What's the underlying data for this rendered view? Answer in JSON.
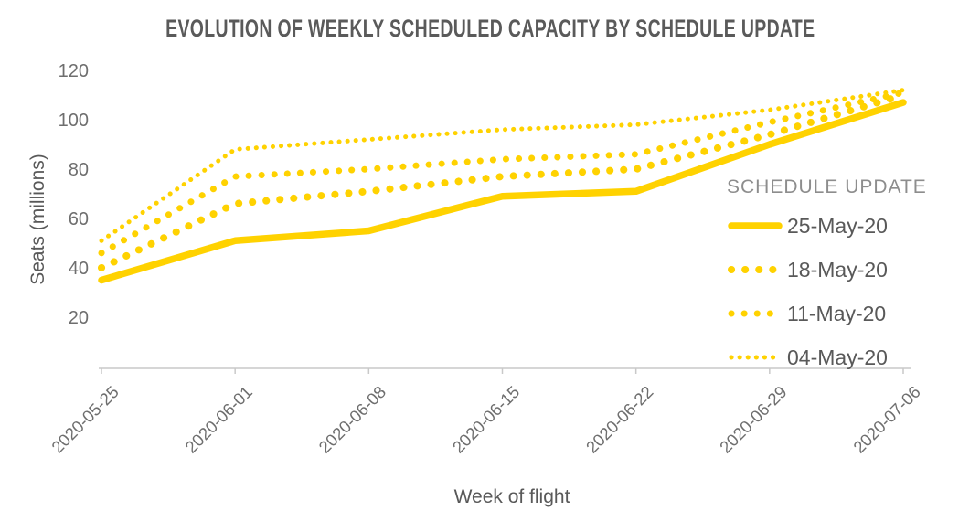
{
  "title": "EVOLUTION OF WEEKLY SCHEDULED CAPACITY BY SCHEDULE UPDATE",
  "colors": {
    "accent": "#FFD200",
    "title_text": "#5a5a5a",
    "axis_text": "#6e6e6e",
    "label_text": "#595959",
    "legend_title_text": "#8d8d8d",
    "axis_line": "#c9c9c9"
  },
  "chart_data": {
    "type": "line",
    "x": [
      "2020-05-25",
      "2020-06-01",
      "2020-06-08",
      "2020-06-15",
      "2020-06-22",
      "2020-06-29",
      "2020-07-06"
    ],
    "xlabel": "Week of flight",
    "ylabel": "Seats (millions)",
    "ylim": [
      0,
      120
    ],
    "yticks": [
      20,
      40,
      60,
      80,
      100,
      120
    ],
    "grid": false,
    "legend_title": "SCHEDULE UPDATE",
    "legend_position": "right",
    "line_color": "#FFD200",
    "series": [
      {
        "name": "25-May-20",
        "style": "solid",
        "values": [
          35,
          51,
          55,
          69,
          71,
          90,
          107
        ]
      },
      {
        "name": "18-May-20",
        "style": "dotted-large",
        "values": [
          40,
          66,
          71,
          77,
          80,
          94,
          110
        ]
      },
      {
        "name": "11-May-20",
        "style": "dotted-medium",
        "values": [
          46,
          77,
          80,
          84,
          86,
          99,
          111
        ]
      },
      {
        "name": "04-May-20",
        "style": "dotted-small",
        "values": [
          51,
          88,
          92,
          96,
          98,
          104,
          112
        ]
      }
    ]
  }
}
